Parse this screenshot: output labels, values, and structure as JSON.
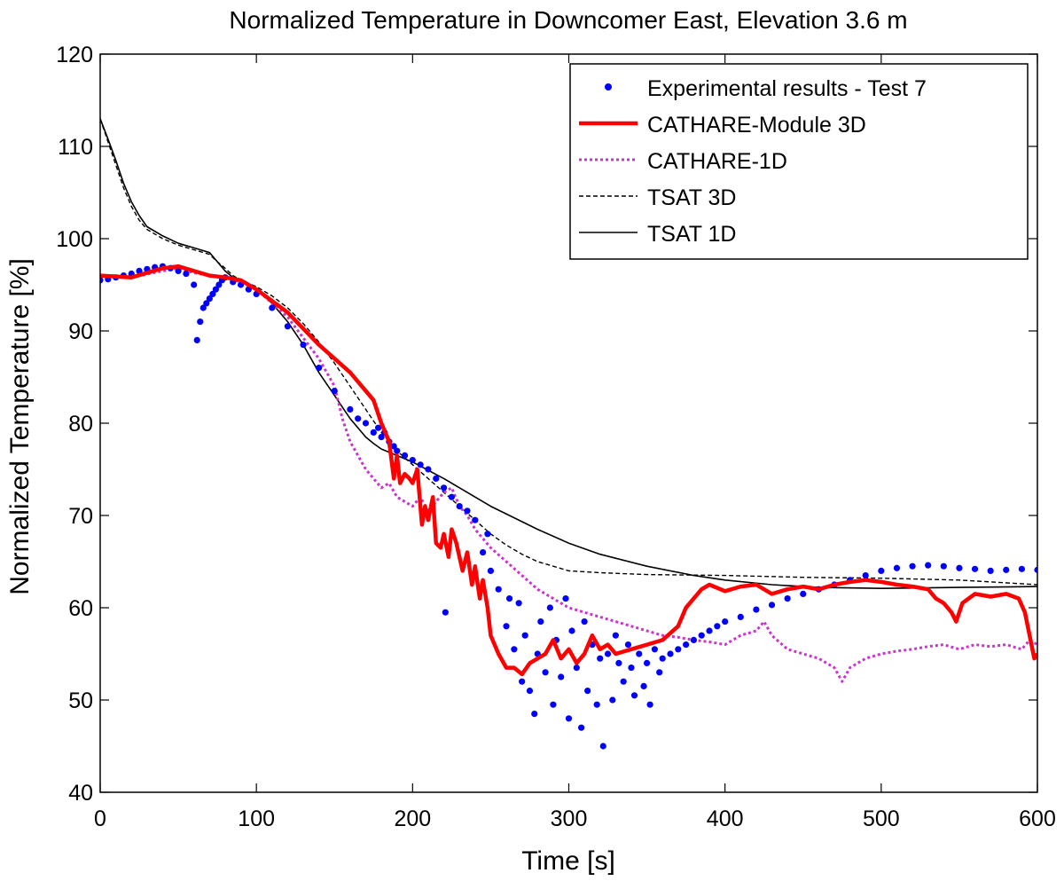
{
  "chart_data": {
    "type": "line",
    "title": "Normalized Temperature in Downcomer East, Elevation 3.6 m",
    "xlabel": "Time [s]",
    "ylabel": "Normalized Temperature [%]",
    "xlim": [
      0,
      600
    ],
    "ylim": [
      40,
      120
    ],
    "xticks": [
      0,
      100,
      200,
      300,
      400,
      500,
      600
    ],
    "yticks": [
      40,
      50,
      60,
      70,
      80,
      90,
      100,
      110,
      120
    ],
    "grid": false,
    "legend_position": "top-right",
    "series": [
      {
        "name": "Experimental results - Test 7",
        "style": "dots",
        "color": "#0000ff",
        "x": [
          0,
          5,
          10,
          15,
          20,
          25,
          30,
          35,
          40,
          45,
          50,
          55,
          60,
          62,
          64,
          66,
          68,
          70,
          72,
          74,
          76,
          78,
          80,
          85,
          90,
          95,
          100,
          110,
          120,
          130,
          140,
          150,
          160,
          165,
          170,
          175,
          178,
          180,
          182,
          185,
          188,
          190,
          195,
          200,
          205,
          210,
          215,
          220,
          221,
          225,
          230,
          235,
          240,
          245,
          248,
          250,
          255,
          260,
          262,
          265,
          268,
          270,
          272,
          275,
          278,
          280,
          282,
          285,
          288,
          290,
          292,
          295,
          298,
          300,
          302,
          305,
          308,
          310,
          312,
          315,
          318,
          320,
          322,
          325,
          328,
          330,
          332,
          335,
          338,
          340,
          342,
          345,
          348,
          350,
          352,
          355,
          358,
          360,
          365,
          370,
          375,
          380,
          385,
          390,
          395,
          400,
          410,
          420,
          430,
          440,
          450,
          460,
          470,
          480,
          490,
          500,
          510,
          520,
          530,
          540,
          550,
          560,
          570,
          580,
          590,
          600
        ],
        "y": [
          95.5,
          95.6,
          95.8,
          96.0,
          96.2,
          96.5,
          96.7,
          96.9,
          97.0,
          96.8,
          96.5,
          96.2,
          95.0,
          89.0,
          91.0,
          92.5,
          93.0,
          93.5,
          94.0,
          94.5,
          95.0,
          95.5,
          95.8,
          95.3,
          95.0,
          94.5,
          94.0,
          92.5,
          90.5,
          88.5,
          86.0,
          83.5,
          81.5,
          80.5,
          80.0,
          79.0,
          79.5,
          78.5,
          79.0,
          78.0,
          77.5,
          77.0,
          76.5,
          76.0,
          75.5,
          75.0,
          74.0,
          73.0,
          59.5,
          72.0,
          71.0,
          70.5,
          69.5,
          66.0,
          68.0,
          64.0,
          62.0,
          58.0,
          61.0,
          55.5,
          60.5,
          52.0,
          57.0,
          51.0,
          48.5,
          55.0,
          58.5,
          53.0,
          60.0,
          49.5,
          56.5,
          52.5,
          61.0,
          48.0,
          57.5,
          53.5,
          47.0,
          58.5,
          51.0,
          56.0,
          49.5,
          54.5,
          45.0,
          55.0,
          50.0,
          57.0,
          54.0,
          52.0,
          56.0,
          53.5,
          50.5,
          55.0,
          51.5,
          54.0,
          49.5,
          55.5,
          53.0,
          54.5,
          55.0,
          55.5,
          56.0,
          56.5,
          57.0,
          57.5,
          58.0,
          58.5,
          59.0,
          59.8,
          60.3,
          61.0,
          61.5,
          62.0,
          62.5,
          63.0,
          63.5,
          64.0,
          64.3,
          64.5,
          64.6,
          64.5,
          64.3,
          64.2,
          64.0,
          64.1,
          64.2,
          64.1
        ]
      },
      {
        "name": "CATHARE-Module 3D",
        "style": "solid-thick",
        "color": "#ff0000",
        "x": [
          0,
          20,
          40,
          50,
          60,
          70,
          80,
          90,
          100,
          120,
          140,
          160,
          175,
          180,
          185,
          188,
          190,
          192,
          195,
          198,
          200,
          203,
          206,
          208,
          210,
          213,
          215,
          218,
          220,
          223,
          225,
          228,
          232,
          235,
          238,
          240,
          243,
          245,
          248,
          250,
          255,
          260,
          265,
          270,
          275,
          280,
          285,
          290,
          295,
          300,
          305,
          310,
          315,
          320,
          325,
          330,
          340,
          350,
          360,
          370,
          375,
          380,
          385,
          390,
          400,
          410,
          420,
          430,
          440,
          450,
          460,
          470,
          480,
          490,
          500,
          510,
          520,
          530,
          535,
          540,
          545,
          548,
          552,
          556,
          560,
          570,
          580,
          588,
          592,
          595,
          598,
          600
        ],
        "y": [
          96.0,
          95.8,
          96.8,
          97.0,
          96.5,
          96.0,
          95.8,
          95.5,
          94.5,
          92.0,
          88.5,
          85.5,
          82.5,
          80.0,
          78.0,
          74.0,
          76.5,
          73.5,
          74.5,
          74.0,
          73.5,
          75.0,
          69.0,
          71.0,
          69.5,
          72.0,
          67.0,
          66.5,
          68.0,
          65.5,
          68.5,
          67.0,
          64.0,
          66.0,
          62.5,
          64.5,
          61.0,
          63.0,
          60.0,
          57.0,
          55.0,
          53.5,
          53.5,
          52.8,
          54.0,
          54.5,
          55.0,
          56.5,
          54.5,
          55.5,
          54.0,
          55.0,
          57.0,
          55.5,
          56.0,
          55.0,
          55.5,
          56.0,
          56.5,
          58.0,
          60.0,
          61.0,
          62.0,
          62.5,
          61.8,
          62.3,
          62.5,
          61.5,
          62.0,
          62.3,
          62.0,
          62.5,
          62.8,
          63.0,
          62.8,
          62.5,
          62.3,
          62.0,
          61.0,
          60.5,
          59.5,
          58.5,
          60.5,
          61.0,
          61.5,
          61.2,
          61.5,
          61.0,
          59.5,
          57.0,
          54.5,
          55.0
        ]
      },
      {
        "name": "CATHARE-1D",
        "style": "dotted",
        "color": "#cc33cc",
        "x": [
          0,
          20,
          40,
          50,
          60,
          70,
          80,
          90,
          100,
          120,
          140,
          150,
          155,
          160,
          165,
          170,
          175,
          180,
          185,
          190,
          195,
          200,
          205,
          210,
          215,
          220,
          225,
          230,
          235,
          240,
          250,
          260,
          270,
          280,
          290,
          300,
          310,
          320,
          330,
          340,
          350,
          360,
          370,
          380,
          390,
          400,
          410,
          420,
          425,
          430,
          440,
          450,
          460,
          470,
          475,
          480,
          490,
          500,
          510,
          520,
          530,
          540,
          550,
          560,
          570,
          580,
          590,
          595,
          600
        ],
        "y": [
          96.0,
          95.8,
          96.5,
          96.8,
          96.3,
          96.0,
          95.8,
          95.3,
          94.5,
          91.5,
          87.0,
          84.0,
          80.5,
          78.0,
          76.5,
          75.0,
          74.0,
          73.0,
          73.5,
          72.0,
          71.5,
          71.0,
          72.0,
          70.5,
          71.5,
          72.5,
          73.0,
          71.0,
          70.0,
          68.5,
          66.5,
          65.0,
          63.5,
          62.0,
          61.0,
          60.0,
          59.5,
          59.0,
          58.5,
          58.0,
          57.5,
          57.0,
          56.8,
          56.5,
          56.3,
          56.0,
          57.0,
          57.5,
          58.5,
          57.0,
          55.5,
          55.0,
          54.5,
          53.5,
          52.0,
          53.5,
          54.5,
          55.0,
          55.3,
          55.5,
          55.8,
          56.0,
          55.5,
          56.0,
          55.8,
          56.0,
          55.5,
          56.5,
          56.0
        ]
      },
      {
        "name": "TSAT 3D",
        "style": "dashed",
        "color": "#000000",
        "x": [
          0,
          5,
          10,
          15,
          20,
          25,
          30,
          40,
          50,
          60,
          70,
          75,
          80,
          85,
          90,
          100,
          110,
          120,
          130,
          140,
          150,
          160,
          170,
          180,
          190,
          200,
          210,
          220,
          230,
          240,
          250,
          260,
          270,
          280,
          290,
          300,
          320,
          350,
          400,
          450,
          500,
          550,
          600
        ],
        "y": [
          113.0,
          110.5,
          108.0,
          105.5,
          103.5,
          102.0,
          101.0,
          100.0,
          99.3,
          98.8,
          98.3,
          97.5,
          96.8,
          96.0,
          95.5,
          94.8,
          93.8,
          92.5,
          90.8,
          88.8,
          86.5,
          84.0,
          81.5,
          79.0,
          77.0,
          75.5,
          74.0,
          72.5,
          71.0,
          69.5,
          68.0,
          66.8,
          65.8,
          65.0,
          64.5,
          64.0,
          63.8,
          63.6,
          63.5,
          63.3,
          63.2,
          63.0,
          62.5
        ]
      },
      {
        "name": "TSAT 1D",
        "style": "solid-thin",
        "color": "#000000",
        "x": [
          0,
          5,
          10,
          15,
          20,
          25,
          30,
          40,
          50,
          60,
          70,
          75,
          80,
          85,
          90,
          100,
          110,
          120,
          130,
          140,
          150,
          160,
          170,
          175,
          180,
          190,
          200,
          220,
          250,
          280,
          300,
          320,
          350,
          380,
          400,
          430,
          460,
          500,
          550,
          600
        ],
        "y": [
          113.0,
          110.8,
          108.5,
          106.0,
          104.0,
          102.5,
          101.3,
          100.3,
          99.5,
          99.0,
          98.5,
          97.5,
          96.5,
          95.8,
          95.5,
          94.5,
          93.0,
          91.0,
          88.5,
          85.5,
          83.0,
          80.5,
          78.5,
          77.8,
          77.2,
          76.5,
          75.8,
          74.0,
          71.0,
          68.5,
          67.0,
          65.8,
          64.5,
          63.5,
          63.0,
          62.5,
          62.2,
          62.1,
          62.2,
          62.3
        ]
      }
    ]
  }
}
